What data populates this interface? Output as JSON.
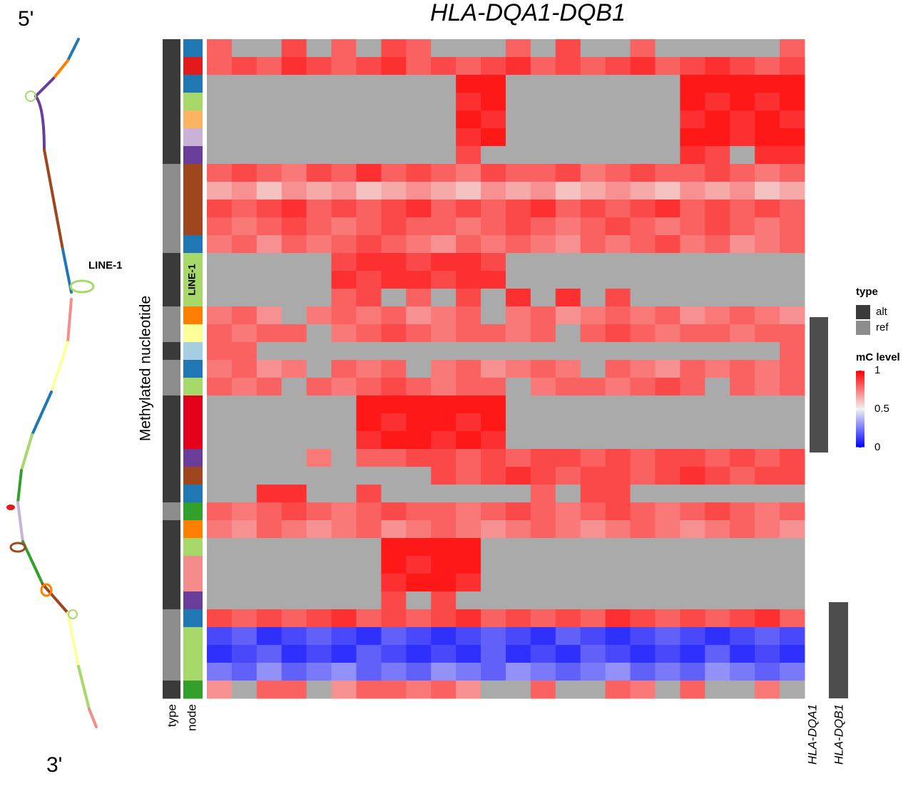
{
  "chart_data": {
    "type": "heatmap",
    "title": "HLA-DQA1-DQB1",
    "y_label": "Methylated nucleotide",
    "annotation_labels": [
      "type",
      "node"
    ],
    "node_label": "LINE-1",
    "genes": [
      "HLA-DQA1",
      "HLA-DQB1"
    ],
    "row_types": [
      "alt",
      "alt",
      "alt",
      "alt",
      "alt",
      "alt",
      "alt",
      "ref",
      "ref",
      "ref",
      "ref",
      "ref",
      "alt",
      "alt",
      "alt",
      "ref",
      "ref",
      "alt",
      "ref",
      "ref",
      "alt",
      "alt",
      "alt",
      "alt",
      "alt",
      "alt",
      "ref",
      "alt",
      "alt",
      "alt",
      "alt",
      "alt",
      "ref",
      "ref",
      "ref",
      "ref",
      "alt"
    ],
    "node_colors": [
      "#1f78b4",
      "#e31a1c",
      "#1f78b4",
      "#a6d96a",
      "#fdb462",
      "#cab2d6",
      "#6a3d9a",
      "#a0461f",
      "#a0461f",
      "#a0461f",
      "#a0461f",
      "#1f78b4",
      "#a6d96a",
      "#a6d96a",
      "#a6d96a",
      "#ff7f00",
      "#ffff99",
      "#a6cee3",
      "#1f78b4",
      "#a6d96a",
      "#e3001b",
      "#e3001b",
      "#e3001b",
      "#6a3d9a",
      "#a0461f",
      "#1f78b4",
      "#33a02c",
      "#ff7f00",
      "#a6d96a",
      "#f58c8c",
      "#f58c8c",
      "#6a3d9a",
      "#1f78b4",
      "#a6d96a",
      "#a6d96a",
      "#a6d96a",
      "#33a02c"
    ],
    "values": [
      [
        0.8,
        null,
        null,
        0.85,
        null,
        0.8,
        null,
        0.85,
        0.8,
        null,
        null,
        null,
        0.8,
        null,
        0.85,
        null,
        null,
        0.8,
        null,
        null,
        null,
        null,
        null,
        0.8
      ],
      [
        0.8,
        0.85,
        0.8,
        0.9,
        0.85,
        0.8,
        0.85,
        0.9,
        0.8,
        0.85,
        0.8,
        0.85,
        0.9,
        0.8,
        0.85,
        0.8,
        0.85,
        0.9,
        0.8,
        0.85,
        0.9,
        0.85,
        0.8,
        0.85
      ],
      [
        null,
        null,
        null,
        null,
        null,
        null,
        null,
        null,
        null,
        null,
        0.95,
        0.95,
        null,
        null,
        null,
        null,
        null,
        null,
        null,
        0.95,
        0.95,
        0.95,
        0.95,
        0.95
      ],
      [
        null,
        null,
        null,
        null,
        null,
        null,
        null,
        null,
        null,
        null,
        0.9,
        0.95,
        null,
        null,
        null,
        null,
        null,
        null,
        null,
        0.95,
        0.9,
        0.95,
        0.9,
        0.95
      ],
      [
        null,
        null,
        null,
        null,
        null,
        null,
        null,
        null,
        null,
        null,
        0.95,
        0.9,
        null,
        null,
        null,
        null,
        null,
        null,
        null,
        0.9,
        0.95,
        0.9,
        0.95,
        0.9
      ],
      [
        null,
        null,
        null,
        null,
        null,
        null,
        null,
        null,
        null,
        null,
        0.9,
        0.95,
        null,
        null,
        null,
        null,
        null,
        null,
        null,
        0.95,
        0.95,
        0.9,
        0.95,
        0.95
      ],
      [
        null,
        null,
        null,
        null,
        null,
        null,
        null,
        null,
        null,
        null,
        0.85,
        null,
        null,
        null,
        null,
        null,
        null,
        null,
        null,
        0.9,
        0.85,
        null,
        0.9,
        0.9
      ],
      [
        0.8,
        0.85,
        0.8,
        0.75,
        0.85,
        0.8,
        0.9,
        0.8,
        0.85,
        0.8,
        0.75,
        0.85,
        0.8,
        0.8,
        0.85,
        0.75,
        0.8,
        0.85,
        0.8,
        0.8,
        0.85,
        0.8,
        0.75,
        0.8
      ],
      [
        0.65,
        0.7,
        0.6,
        0.7,
        0.65,
        0.7,
        0.6,
        0.65,
        0.7,
        0.65,
        0.6,
        0.7,
        0.65,
        0.7,
        0.6,
        0.65,
        0.7,
        0.65,
        0.6,
        0.7,
        0.65,
        0.7,
        0.6,
        0.65
      ],
      [
        0.85,
        0.8,
        0.85,
        0.9,
        0.8,
        0.85,
        0.8,
        0.85,
        0.9,
        0.8,
        0.85,
        0.8,
        0.85,
        0.9,
        0.8,
        0.85,
        0.8,
        0.85,
        0.9,
        0.8,
        0.85,
        0.8,
        0.85,
        0.8
      ],
      [
        0.8,
        0.75,
        0.8,
        0.85,
        0.8,
        0.75,
        0.8,
        0.85,
        0.8,
        0.8,
        0.75,
        0.8,
        0.85,
        0.8,
        0.75,
        0.8,
        0.85,
        0.8,
        0.75,
        0.8,
        0.85,
        0.8,
        0.75,
        0.8
      ],
      [
        0.75,
        0.8,
        0.7,
        0.8,
        0.75,
        0.8,
        0.85,
        0.8,
        0.75,
        0.7,
        0.8,
        0.75,
        0.8,
        0.75,
        0.7,
        0.8,
        0.75,
        0.8,
        0.85,
        0.75,
        0.8,
        0.7,
        0.75,
        0.8
      ],
      [
        null,
        null,
        null,
        null,
        null,
        0.85,
        0.9,
        0.9,
        0.85,
        0.9,
        0.9,
        0.85,
        null,
        null,
        null,
        null,
        null,
        null,
        null,
        null,
        null,
        null,
        null,
        null
      ],
      [
        null,
        null,
        null,
        null,
        null,
        0.9,
        0.85,
        0.9,
        0.9,
        0.85,
        0.9,
        0.9,
        null,
        null,
        null,
        null,
        null,
        null,
        null,
        null,
        null,
        null,
        null,
        null
      ],
      [
        null,
        null,
        null,
        null,
        null,
        0.8,
        0.85,
        null,
        0.8,
        null,
        0.85,
        null,
        0.9,
        null,
        0.9,
        null,
        0.85,
        null,
        null,
        null,
        null,
        null,
        null,
        null
      ],
      [
        0.75,
        0.8,
        0.7,
        null,
        0.75,
        0.8,
        0.75,
        0.8,
        0.7,
        0.75,
        0.8,
        null,
        0.75,
        0.8,
        0.7,
        0.75,
        0.8,
        0.75,
        0.8,
        0.7,
        0.75,
        0.8,
        0.75,
        0.7
      ],
      [
        0.8,
        0.75,
        0.8,
        0.8,
        null,
        0.75,
        0.8,
        0.85,
        0.8,
        0.75,
        0.8,
        0.8,
        0.75,
        0.8,
        null,
        0.8,
        0.85,
        0.8,
        0.75,
        0.8,
        0.8,
        0.75,
        0.8,
        0.8
      ],
      [
        0.8,
        0.8,
        null,
        null,
        null,
        null,
        null,
        null,
        null,
        null,
        null,
        null,
        null,
        null,
        null,
        null,
        null,
        null,
        null,
        null,
        null,
        null,
        null,
        0.8
      ],
      [
        0.75,
        0.8,
        0.7,
        0.75,
        null,
        0.8,
        0.75,
        0.8,
        null,
        0.75,
        0.8,
        0.7,
        0.75,
        0.8,
        0.75,
        null,
        0.8,
        0.75,
        0.7,
        0.8,
        0.75,
        0.8,
        0.75,
        0.8
      ],
      [
        0.8,
        0.75,
        0.8,
        null,
        0.8,
        0.75,
        0.8,
        0.85,
        0.8,
        0.75,
        0.8,
        0.8,
        null,
        0.75,
        0.8,
        0.8,
        0.75,
        0.8,
        0.85,
        0.8,
        null,
        0.8,
        0.75,
        0.8
      ],
      [
        null,
        null,
        null,
        null,
        null,
        null,
        0.95,
        0.95,
        0.95,
        0.95,
        0.95,
        0.95,
        null,
        null,
        null,
        null,
        null,
        null,
        null,
        null,
        null,
        null,
        null,
        null
      ],
      [
        null,
        null,
        null,
        null,
        null,
        null,
        0.95,
        0.9,
        0.95,
        0.95,
        0.9,
        0.95,
        null,
        null,
        null,
        null,
        null,
        null,
        null,
        null,
        null,
        null,
        null,
        null
      ],
      [
        null,
        null,
        null,
        null,
        null,
        null,
        0.9,
        0.95,
        0.95,
        0.9,
        0.95,
        0.9,
        null,
        null,
        null,
        null,
        null,
        null,
        null,
        null,
        null,
        null,
        null,
        null
      ],
      [
        null,
        null,
        null,
        null,
        0.75,
        null,
        0.8,
        0.8,
        0.85,
        0.85,
        0.8,
        0.85,
        0.8,
        0.85,
        0.85,
        0.8,
        0.85,
        0.8,
        0.85,
        0.85,
        0.8,
        0.85,
        0.8,
        0.85
      ],
      [
        null,
        null,
        null,
        null,
        null,
        null,
        null,
        null,
        null,
        0.85,
        0.8,
        0.85,
        0.9,
        0.85,
        0.8,
        0.85,
        0.85,
        0.8,
        0.85,
        0.9,
        0.85,
        0.8,
        0.85,
        0.85
      ],
      [
        null,
        null,
        0.9,
        0.9,
        null,
        null,
        0.85,
        null,
        null,
        null,
        null,
        null,
        null,
        0.8,
        null,
        0.85,
        0.85,
        null,
        null,
        null,
        null,
        null,
        null,
        null
      ],
      [
        0.8,
        0.75,
        0.8,
        0.85,
        0.8,
        0.75,
        0.8,
        0.85,
        0.8,
        0.8,
        0.75,
        0.8,
        0.85,
        0.8,
        0.75,
        0.8,
        0.85,
        0.8,
        0.75,
        0.8,
        0.85,
        0.8,
        0.75,
        0.8
      ],
      [
        0.75,
        0.7,
        0.8,
        0.75,
        0.7,
        0.75,
        0.8,
        0.7,
        0.75,
        0.8,
        0.75,
        0.7,
        0.75,
        0.8,
        0.75,
        0.7,
        0.75,
        0.8,
        0.75,
        0.7,
        0.75,
        0.8,
        0.75,
        0.7
      ],
      [
        null,
        null,
        null,
        null,
        null,
        null,
        null,
        0.95,
        0.95,
        0.95,
        0.95,
        null,
        null,
        null,
        null,
        null,
        null,
        null,
        null,
        null,
        null,
        null,
        null,
        null
      ],
      [
        null,
        null,
        null,
        null,
        null,
        null,
        null,
        0.95,
        0.9,
        0.95,
        0.95,
        null,
        null,
        null,
        null,
        null,
        null,
        null,
        null,
        null,
        null,
        null,
        null,
        null
      ],
      [
        null,
        null,
        null,
        null,
        null,
        null,
        null,
        0.9,
        0.95,
        0.95,
        0.9,
        null,
        null,
        null,
        null,
        null,
        null,
        null,
        null,
        null,
        null,
        null,
        null,
        null
      ],
      [
        null,
        null,
        null,
        null,
        null,
        null,
        null,
        0.85,
        null,
        0.85,
        null,
        null,
        null,
        null,
        null,
        null,
        null,
        null,
        null,
        null,
        null,
        null,
        null,
        null
      ],
      [
        0.85,
        0.8,
        0.85,
        0.8,
        0.85,
        0.9,
        0.8,
        0.85,
        0.8,
        0.85,
        0.9,
        0.8,
        0.85,
        0.8,
        0.85,
        0.8,
        0.9,
        0.85,
        0.8,
        0.85,
        0.8,
        0.85,
        0.9,
        0.8
      ],
      [
        0.15,
        0.2,
        0.1,
        0.15,
        0.2,
        0.15,
        0.1,
        0.2,
        0.15,
        0.1,
        0.15,
        0.2,
        0.15,
        0.1,
        0.2,
        0.15,
        0.1,
        0.15,
        0.2,
        0.15,
        0.1,
        0.15,
        0.2,
        0.15
      ],
      [
        0.1,
        0.15,
        0.2,
        0.1,
        0.15,
        0.1,
        0.2,
        0.15,
        0.1,
        0.15,
        0.1,
        0.2,
        0.1,
        0.15,
        0.1,
        0.2,
        0.15,
        0.1,
        0.15,
        0.1,
        0.2,
        0.1,
        0.15,
        0.1
      ],
      [
        0.25,
        0.2,
        0.3,
        0.2,
        0.25,
        0.3,
        0.2,
        0.25,
        0.2,
        0.3,
        0.25,
        0.2,
        0.3,
        0.25,
        0.2,
        0.25,
        0.3,
        0.2,
        0.25,
        0.2,
        0.3,
        0.25,
        0.2,
        0.25
      ],
      [
        0.7,
        null,
        0.8,
        0.8,
        null,
        0.7,
        0.8,
        0.8,
        0.75,
        0.8,
        0.7,
        null,
        null,
        0.8,
        null,
        null,
        0.8,
        0.75,
        null,
        0.8,
        null,
        null,
        0.75,
        null
      ]
    ],
    "colorscale": {
      "low": "#0000ff",
      "mid": "#f2f2f2",
      "high": "#ff0000",
      "missing": "#aaaaaa"
    },
    "clim": [
      0,
      1
    ],
    "cticks": [
      0,
      0.5,
      1
    ],
    "legend": {
      "type_title": "type",
      "type_entries": [
        {
          "name": "alt",
          "color": "#3a3a3a"
        },
        {
          "name": "ref",
          "color": "#8c8c8c"
        }
      ],
      "color_title": "mC level"
    }
  },
  "diagram": {
    "five_prime": "5'",
    "three_prime": "3'",
    "label": "LINE-1"
  }
}
